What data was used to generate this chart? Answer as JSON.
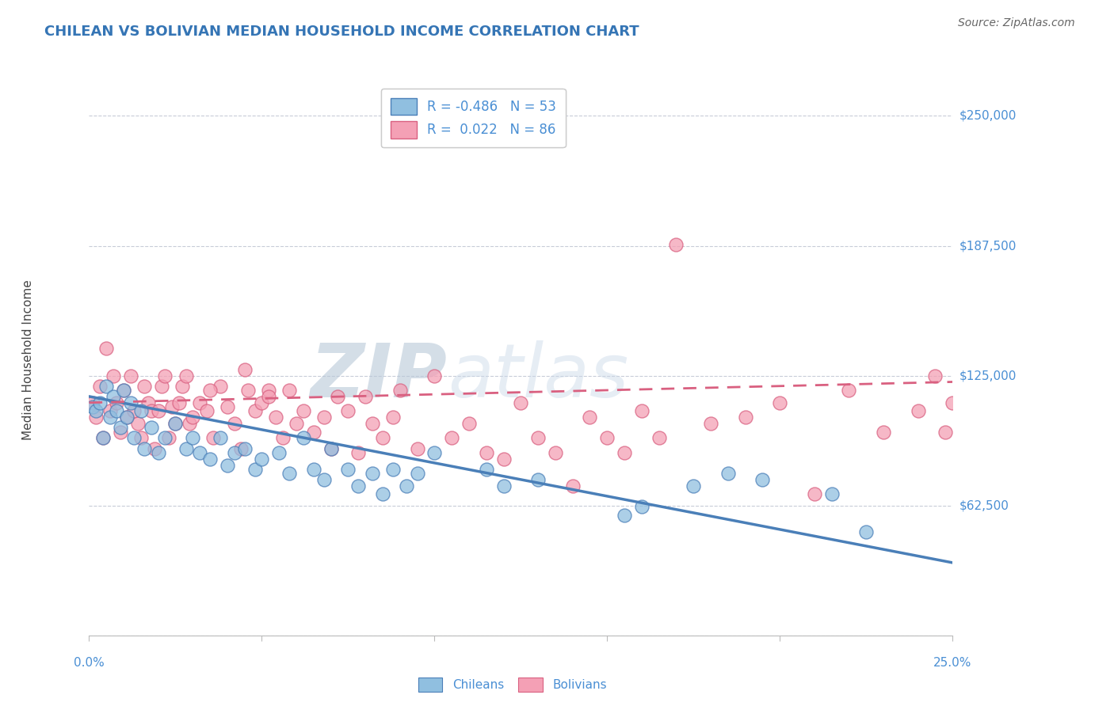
{
  "title": "CHILEAN VS BOLIVIAN MEDIAN HOUSEHOLD INCOME CORRELATION CHART",
  "source": "Source: ZipAtlas.com",
  "ylabel": "Median Household Income",
  "ytick_positions": [
    0,
    62500,
    125000,
    187500,
    250000
  ],
  "ytick_labels": [
    "",
    "$62,500",
    "$125,000",
    "$187,500",
    "$250,000"
  ],
  "xmin": 0.0,
  "xmax": 0.25,
  "ymin": 0,
  "ymax": 265000,
  "chileans_color": "#90bfe0",
  "bolivians_color": "#f4a0b5",
  "chileans_line_color": "#4a7fb8",
  "bolivians_line_color": "#d96080",
  "title_color": "#3575b5",
  "tick_label_color": "#4a8fd4",
  "source_color": "#666666",
  "legend_R_chileans": "-0.486",
  "legend_N_chileans": "53",
  "legend_R_bolivians": " 0.022",
  "legend_N_bolivians": "86",
  "watermark_ZIP_color": "#c0cfe0",
  "watermark_atlas_color": "#c8d8e8",
  "chileans_x": [
    0.001,
    0.002,
    0.003,
    0.004,
    0.005,
    0.006,
    0.007,
    0.008,
    0.009,
    0.01,
    0.011,
    0.012,
    0.013,
    0.015,
    0.016,
    0.018,
    0.02,
    0.022,
    0.025,
    0.028,
    0.03,
    0.032,
    0.035,
    0.038,
    0.04,
    0.042,
    0.045,
    0.048,
    0.05,
    0.055,
    0.058,
    0.062,
    0.065,
    0.068,
    0.07,
    0.075,
    0.078,
    0.082,
    0.085,
    0.088,
    0.092,
    0.095,
    0.1,
    0.115,
    0.12,
    0.13,
    0.155,
    0.16,
    0.175,
    0.185,
    0.195,
    0.215,
    0.225
  ],
  "chileans_y": [
    110000,
    108000,
    112000,
    95000,
    120000,
    105000,
    115000,
    108000,
    100000,
    118000,
    105000,
    112000,
    95000,
    108000,
    90000,
    100000,
    88000,
    95000,
    102000,
    90000,
    95000,
    88000,
    85000,
    95000,
    82000,
    88000,
    90000,
    80000,
    85000,
    88000,
    78000,
    95000,
    80000,
    75000,
    90000,
    80000,
    72000,
    78000,
    68000,
    80000,
    72000,
    78000,
    88000,
    80000,
    72000,
    75000,
    58000,
    62000,
    72000,
    78000,
    75000,
    68000,
    50000
  ],
  "bolivians_x": [
    0.001,
    0.002,
    0.003,
    0.004,
    0.005,
    0.006,
    0.007,
    0.008,
    0.009,
    0.01,
    0.011,
    0.012,
    0.013,
    0.014,
    0.015,
    0.016,
    0.017,
    0.018,
    0.019,
    0.02,
    0.021,
    0.022,
    0.023,
    0.024,
    0.025,
    0.026,
    0.027,
    0.028,
    0.029,
    0.03,
    0.032,
    0.034,
    0.036,
    0.038,
    0.04,
    0.042,
    0.044,
    0.046,
    0.048,
    0.05,
    0.052,
    0.054,
    0.056,
    0.058,
    0.06,
    0.062,
    0.065,
    0.068,
    0.07,
    0.072,
    0.075,
    0.078,
    0.08,
    0.082,
    0.085,
    0.088,
    0.09,
    0.095,
    0.1,
    0.105,
    0.11,
    0.115,
    0.12,
    0.125,
    0.13,
    0.135,
    0.14,
    0.145,
    0.15,
    0.155,
    0.16,
    0.165,
    0.17,
    0.18,
    0.19,
    0.2,
    0.21,
    0.22,
    0.23,
    0.24,
    0.245,
    0.248,
    0.25,
    0.052,
    0.035,
    0.045
  ],
  "bolivians_y": [
    112000,
    105000,
    120000,
    95000,
    138000,
    108000,
    125000,
    112000,
    98000,
    118000,
    105000,
    125000,
    108000,
    102000,
    95000,
    120000,
    112000,
    108000,
    90000,
    108000,
    120000,
    125000,
    95000,
    110000,
    102000,
    112000,
    120000,
    125000,
    102000,
    105000,
    112000,
    108000,
    95000,
    120000,
    110000,
    102000,
    90000,
    118000,
    108000,
    112000,
    118000,
    105000,
    95000,
    118000,
    102000,
    108000,
    98000,
    105000,
    90000,
    115000,
    108000,
    88000,
    115000,
    102000,
    95000,
    105000,
    118000,
    90000,
    125000,
    95000,
    102000,
    88000,
    85000,
    112000,
    95000,
    88000,
    72000,
    105000,
    95000,
    88000,
    108000,
    95000,
    188000,
    102000,
    105000,
    112000,
    68000,
    118000,
    98000,
    108000,
    125000,
    98000,
    112000,
    115000,
    118000,
    128000
  ]
}
